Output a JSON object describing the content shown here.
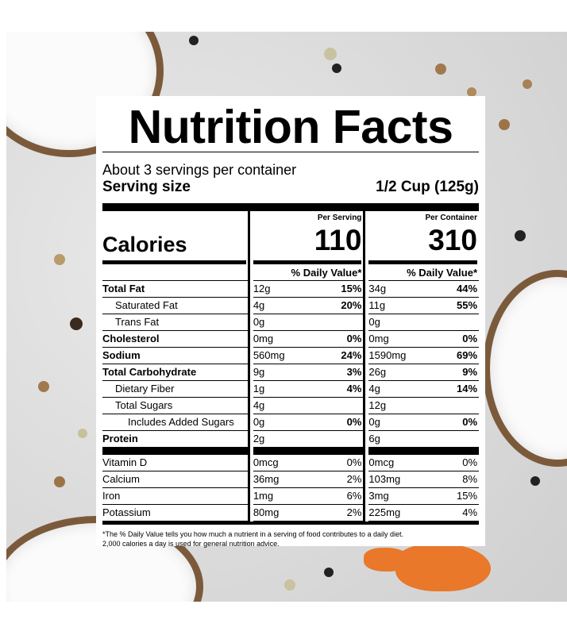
{
  "label": {
    "title": "Nutrition Facts",
    "servings": "About 3 servings per container",
    "serving_size_label": "Serving size",
    "serving_size_value": "1/2 Cup (125g)",
    "calories_label": "Calories",
    "per_serving_label": "Per Serving",
    "per_container_label": "Per Container",
    "calories_serving": "110",
    "calories_container": "310",
    "dv_header": "% Daily Value*",
    "nutrients": [
      {
        "name": "Total Fat",
        "amount_s": "12g",
        "dv_s": "15%",
        "amount_c": "34g",
        "dv_c": "44%"
      },
      {
        "name": "Saturated Fat",
        "amount_s": "4g",
        "dv_s": "20%",
        "amount_c": "11g",
        "dv_c": "55%"
      },
      {
        "name": "Trans Fat",
        "amount_s": "0g",
        "dv_s": "",
        "amount_c": "0g",
        "dv_c": ""
      },
      {
        "name": "Cholesterol",
        "amount_s": "0mg",
        "dv_s": "0%",
        "amount_c": "0mg",
        "dv_c": "0%"
      },
      {
        "name": "Sodium",
        "amount_s": "560mg",
        "dv_s": "24%",
        "amount_c": "1590mg",
        "dv_c": "69%"
      },
      {
        "name": "Total Carbohydrate",
        "amount_s": "9g",
        "dv_s": "3%",
        "amount_c": "26g",
        "dv_c": "9%"
      },
      {
        "name": "Dietary Fiber",
        "amount_s": "1g",
        "dv_s": "4%",
        "amount_c": "4g",
        "dv_c": "14%"
      },
      {
        "name": "Total Sugars",
        "amount_s": "4g",
        "dv_s": "",
        "amount_c": "12g",
        "dv_c": ""
      },
      {
        "name": "Includes Added Sugars",
        "amount_s": "0g",
        "dv_s": "0%",
        "amount_c": "0g",
        "dv_c": "0%"
      },
      {
        "name": "Protein",
        "amount_s": "2g",
        "dv_s": "",
        "amount_c": "6g",
        "dv_c": ""
      }
    ],
    "minerals": [
      {
        "name": "Vitamin D",
        "amount_s": "0mcg",
        "dv_s": "0%",
        "amount_c": "0mcg",
        "dv_c": "0%"
      },
      {
        "name": "Calcium",
        "amount_s": "36mg",
        "dv_s": "2%",
        "amount_c": "103mg",
        "dv_c": "8%"
      },
      {
        "name": "Iron",
        "amount_s": "1mg",
        "dv_s": "6%",
        "amount_c": "3mg",
        "dv_c": "15%"
      },
      {
        "name": "Potassium",
        "amount_s": "80mg",
        "dv_s": "2%",
        "amount_c": "225mg",
        "dv_c": "4%"
      }
    ],
    "footnote_1": "*The % Daily Value tells you how much a nutrient in a serving of food contributes to a daily diet.",
    "footnote_2": "2,000 calories a day is used for general nutrition advice."
  }
}
